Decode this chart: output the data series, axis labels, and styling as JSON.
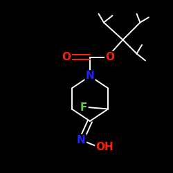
{
  "background_color": "#000000",
  "bond_color": "#ffffff",
  "O_color": "#ff2200",
  "N_color": "#2222ff",
  "F_color": "#66cc44",
  "font_size": 11,
  "lw": 1.4,
  "fig_size": [
    2.5,
    2.5
  ],
  "dpi": 100,
  "xlim": [
    0,
    10
  ],
  "ylim": [
    0,
    10
  ]
}
